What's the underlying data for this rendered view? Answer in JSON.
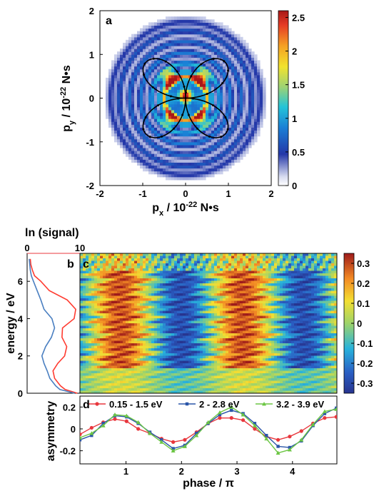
{
  "panels": {
    "a": {
      "letter": "a",
      "xlabel_main": "p",
      "xlabel_sub": "x",
      "xlabel_rest": " / 10",
      "xlabel_exp": "-22",
      "xlabel_unit": " N•s",
      "ylabel_main": "p",
      "ylabel_sub": "y",
      "ylabel_rest": " / 10",
      "ylabel_exp": "-22",
      "ylabel_unit": " N•s",
      "xticks": [
        "-2",
        "-1",
        "0",
        "1",
        "2"
      ],
      "yticks": [
        "2",
        "1",
        "0",
        "-1",
        "-2"
      ],
      "colorbar_ticks": [
        "2.5",
        "2",
        "1.5",
        "1",
        "0.5",
        "0"
      ]
    },
    "b": {
      "letter": "b",
      "top_label": "ln (signal)",
      "top_ticks": [
        "0",
        "10"
      ],
      "ylabel": "energy / eV",
      "yticks": [
        "6",
        "4",
        "2",
        "0"
      ]
    },
    "c": {
      "letter": "c",
      "colorbar_ticks": [
        "0.3",
        "0.2",
        "0.1",
        "0",
        "-0.1",
        "-0.2",
        "-0.3"
      ]
    },
    "d": {
      "letter": "d",
      "ylabel": "asymmetry",
      "xlabel": "phase / π",
      "xticks": [
        "1",
        "2",
        "3",
        "4"
      ],
      "yticks": [
        "0.2",
        "0",
        "-0.2"
      ]
    }
  },
  "chart_data": [
    {
      "panel": "a",
      "type": "heatmap",
      "title": "",
      "xlabel": "px / 10^-22 N•s",
      "ylabel": "py / 10^-22 N•s",
      "xlim": [
        -2,
        2
      ],
      "ylim": [
        -2,
        2
      ],
      "colorbar_range": [
        0,
        2.6
      ],
      "colormap": "jet",
      "description_values": {
        "ring_radii": [
          0.5,
          0.8,
          1.05,
          1.3,
          1.55,
          1.75
        ],
        "ring_strength": [
          1.8,
          0.9,
          0.7,
          0.6,
          0.5,
          0.35
        ],
        "hotspots": [
          {
            "x": -0.35,
            "y": 0.45,
            "value": 2.2
          },
          {
            "x": 0.35,
            "y": 0.45,
            "value": 2.2
          },
          {
            "x": -0.35,
            "y": -0.45,
            "value": 1.6
          },
          {
            "x": 0.35,
            "y": -0.45,
            "value": 1.6
          },
          {
            "x": 0.0,
            "y": 0.05,
            "value": 2.5
          }
        ]
      },
      "overlay_curve": {
        "type": "line",
        "shape": "four-lobed butterfly",
        "max_radius": 1.4,
        "lobe_centers_deg": [
          55,
          125,
          235,
          305
        ],
        "color": "#000000"
      }
    },
    {
      "panel": "b",
      "type": "line",
      "xlabel": "ln (signal)",
      "ylabel": "energy / eV",
      "xlim": [
        0,
        10
      ],
      "ylim": [
        0,
        7.5
      ],
      "series": [
        {
          "color": "#ff3b30",
          "energy": [
            0.0,
            0.2,
            0.4,
            0.8,
            1.2,
            1.6,
            2.0,
            2.5,
            3.0,
            3.5,
            4.0,
            4.5,
            5.0,
            5.5,
            6.0,
            6.3,
            6.6,
            6.9,
            7.2
          ],
          "values": [
            9.5,
            7.2,
            6.3,
            5.2,
            4.9,
            5.8,
            7.1,
            7.5,
            6.6,
            6.7,
            8.9,
            9.2,
            7.6,
            4.2,
            2.6,
            1.4,
            1.0,
            0.7,
            0.6
          ]
        },
        {
          "color": "#4a7fc1",
          "energy": [
            0.0,
            0.2,
            0.4,
            0.8,
            1.2,
            1.6,
            2.0,
            2.5,
            3.0,
            3.5,
            4.0,
            4.5,
            5.0,
            5.5,
            6.0,
            6.3,
            6.6,
            6.9,
            7.2
          ],
          "values": [
            9.0,
            6.2,
            5.4,
            4.3,
            3.8,
            3.2,
            2.8,
            3.5,
            4.6,
            5.2,
            4.7,
            3.2,
            2.6,
            1.9,
            1.2,
            0.8,
            0.6,
            0.5,
            0.4
          ]
        }
      ]
    },
    {
      "panel": "c",
      "type": "heatmap",
      "xlabel": "phase / π",
      "ylabel": "energy / eV",
      "xlim": [
        0.17,
        4.8
      ],
      "ylim": [
        0,
        7.5
      ],
      "colorbar_range": [
        -0.35,
        0.35
      ],
      "colormap": "jet",
      "description_values": {
        "dominant_period_phase_pi": 2.2,
        "dominant_offset_phase_pi": 0.35,
        "max_amplitude": 0.3
      }
    },
    {
      "panel": "d",
      "type": "line",
      "xlabel": "phase / π",
      "ylabel": "asymmetry",
      "xlim": [
        0.17,
        4.8
      ],
      "ylim": [
        -0.32,
        0.3
      ],
      "legend_position": "top",
      "x": [
        0.17,
        0.38,
        0.59,
        0.8,
        1.01,
        1.22,
        1.43,
        1.64,
        1.85,
        2.06,
        2.27,
        2.48,
        2.69,
        2.9,
        3.11,
        3.32,
        3.53,
        3.74,
        3.95,
        4.16,
        4.37,
        4.58,
        4.79
      ],
      "series": [
        {
          "name": "0.15 - 1.5 eV",
          "color": "#e8373d",
          "marker": "circle",
          "values": [
            -0.05,
            0.01,
            0.06,
            0.09,
            0.07,
            0.0,
            -0.04,
            -0.09,
            -0.12,
            -0.1,
            -0.03,
            0.05,
            0.1,
            0.1,
            0.08,
            0.0,
            -0.07,
            -0.1,
            -0.07,
            -0.02,
            0.05,
            0.1,
            0.11
          ]
        },
        {
          "name": "2 - 2.8 eV",
          "color": "#2a55a8",
          "marker": "square",
          "values": [
            -0.1,
            -0.06,
            0.05,
            0.12,
            0.11,
            0.05,
            -0.03,
            -0.1,
            -0.18,
            -0.15,
            -0.04,
            0.05,
            0.13,
            0.17,
            0.14,
            0.05,
            -0.06,
            -0.16,
            -0.17,
            -0.11,
            0.03,
            0.14,
            0.19
          ]
        },
        {
          "name": "3.2 - 3.9 eV",
          "color": "#6cc644",
          "marker": "triangle",
          "values": [
            -0.08,
            -0.04,
            0.03,
            0.13,
            0.12,
            0.06,
            -0.04,
            -0.12,
            -0.2,
            -0.16,
            -0.06,
            0.06,
            0.15,
            0.2,
            0.13,
            0.03,
            -0.09,
            -0.22,
            -0.19,
            -0.1,
            0.04,
            0.16,
            0.18
          ]
        }
      ]
    }
  ]
}
